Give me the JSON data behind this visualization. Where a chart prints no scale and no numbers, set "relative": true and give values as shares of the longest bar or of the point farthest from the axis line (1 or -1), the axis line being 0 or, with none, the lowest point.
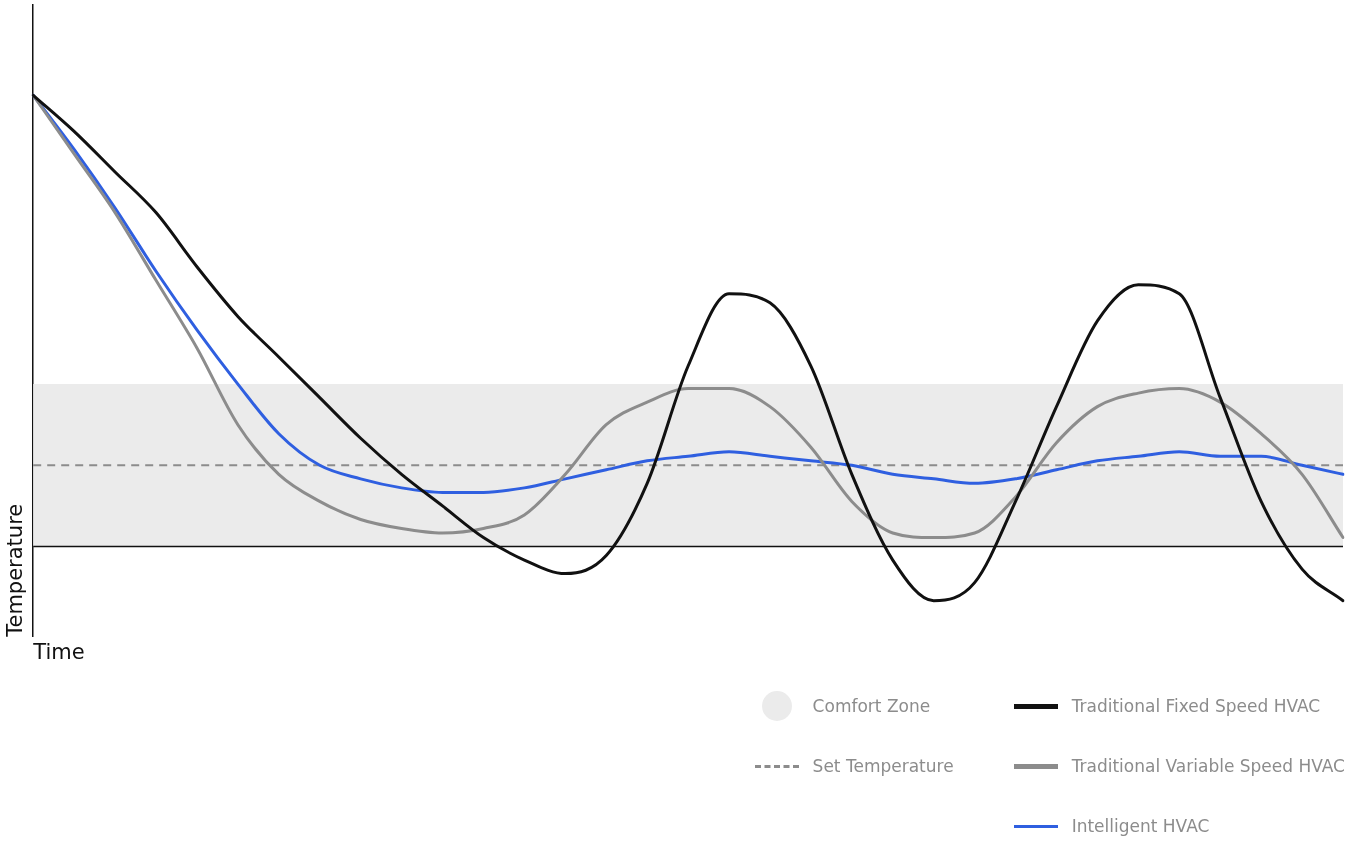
{
  "chart_data": {
    "type": "line",
    "relative": true,
    "xlabel": "Time",
    "ylabel": "Temperature",
    "categories": [
      null,
      null,
      null,
      null,
      null,
      null,
      null,
      null,
      null,
      null,
      null,
      null,
      null,
      null,
      null,
      null,
      null,
      null,
      null,
      null,
      null,
      null,
      null,
      null,
      null,
      null,
      null,
      null,
      null,
      null,
      null,
      null,
      null
    ],
    "series": [
      {
        "name": "Traditional Fixed Speed HVAC",
        "color": "#111111",
        "values": [
          1.0,
          0.92,
          0.83,
          0.74,
          0.62,
          0.51,
          0.42,
          0.33,
          0.24,
          0.16,
          0.09,
          0.02,
          -0.03,
          -0.06,
          -0.02,
          0.14,
          0.4,
          0.56,
          0.54,
          0.4,
          0.16,
          -0.03,
          -0.12,
          -0.08,
          0.1,
          0.31,
          0.5,
          0.58,
          0.56,
          0.33,
          0.1,
          -0.05,
          -0.12
        ]
      },
      {
        "name": "Traditional Variable Speed HVAC",
        "color": "#8c8c8c",
        "values": [
          1.0,
          0.87,
          0.74,
          0.59,
          0.44,
          0.27,
          0.16,
          0.1,
          0.06,
          0.04,
          0.03,
          0.04,
          0.07,
          0.16,
          0.27,
          0.32,
          0.35,
          0.35,
          0.31,
          0.22,
          0.1,
          0.03,
          0.02,
          0.03,
          0.11,
          0.23,
          0.31,
          0.34,
          0.35,
          0.32,
          0.25,
          0.16,
          0.02
        ]
      },
      {
        "name": "Intelligent HVAC",
        "color": "#2f5fe0",
        "values": [
          1.0,
          0.88,
          0.75,
          0.61,
          0.48,
          0.36,
          0.25,
          0.18,
          0.15,
          0.13,
          0.12,
          0.12,
          0.13,
          0.15,
          0.17,
          0.19,
          0.2,
          0.21,
          0.2,
          0.19,
          0.18,
          0.16,
          0.15,
          0.14,
          0.15,
          0.17,
          0.19,
          0.2,
          0.21,
          0.2,
          0.2,
          0.18,
          0.16
        ]
      }
    ],
    "bands": [
      {
        "axis": "y",
        "from": 0,
        "to": 0.36,
        "label": "Comfort Zone",
        "color": "#ebebeb"
      }
    ],
    "ref_lines": [
      {
        "axis": "y",
        "value": 0.18,
        "label": "Set Temperature",
        "color": "#8c8c8c",
        "line_style": "dashed"
      }
    ],
    "legend": "bottom right",
    "grid": false,
    "marker": "none",
    "line_style": "solid"
  }
}
